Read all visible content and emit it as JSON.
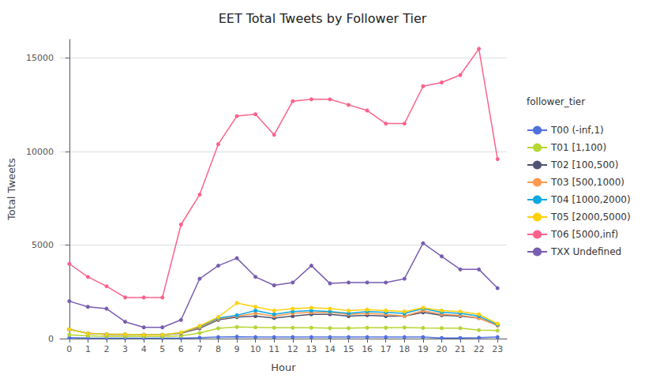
{
  "chart_data": {
    "type": "line",
    "title": "EET Total Tweets by Follower Tier",
    "xlabel": "Hour",
    "ylabel": "Total Tweets",
    "x": [
      0,
      1,
      2,
      3,
      4,
      5,
      6,
      7,
      8,
      9,
      10,
      11,
      12,
      13,
      14,
      15,
      16,
      17,
      18,
      19,
      20,
      21,
      22,
      23
    ],
    "series": [
      {
        "name": "T00 (-inf,1)",
        "values": [
          50,
          30,
          20,
          20,
          20,
          20,
          20,
          50,
          80,
          100,
          80,
          80,
          80,
          80,
          80,
          80,
          80,
          80,
          80,
          80,
          30,
          30,
          50,
          80
        ]
      },
      {
        "name": "T01 [1,100)",
        "values": [
          200,
          150,
          120,
          120,
          120,
          120,
          150,
          300,
          550,
          620,
          600,
          580,
          580,
          580,
          560,
          560,
          580,
          580,
          590,
          570,
          560,
          560,
          450,
          430
        ]
      },
      {
        "name": "T02 [100,500)",
        "values": [
          500,
          280,
          220,
          220,
          200,
          200,
          280,
          550,
          1000,
          1150,
          1200,
          1100,
          1200,
          1300,
          1300,
          1200,
          1250,
          1200,
          1200,
          1400,
          1250,
          1200,
          1100,
          700
        ]
      },
      {
        "name": "T03 [500,1000)",
        "values": [
          500,
          280,
          220,
          220,
          200,
          200,
          300,
          600,
          1050,
          1200,
          1350,
          1200,
          1350,
          1400,
          1400,
          1300,
          1350,
          1300,
          1200,
          1500,
          1300,
          1250,
          1100,
          700
        ]
      },
      {
        "name": "T04 [1000,2000)",
        "values": [
          500,
          270,
          230,
          230,
          200,
          200,
          320,
          650,
          1100,
          1250,
          1500,
          1300,
          1450,
          1500,
          1450,
          1350,
          1450,
          1400,
          1350,
          1600,
          1400,
          1350,
          1200,
          750
        ]
      },
      {
        "name": "T05 [2000,5000)",
        "values": [
          500,
          270,
          230,
          230,
          200,
          200,
          330,
          680,
          1150,
          1900,
          1700,
          1500,
          1600,
          1650,
          1600,
          1500,
          1550,
          1500,
          1450,
          1650,
          1500,
          1450,
          1300,
          800
        ]
      },
      {
        "name": "T06 [5000,inf)",
        "values": [
          4000,
          3300,
          2800,
          2200,
          2200,
          2200,
          6100,
          7700,
          10400,
          11900,
          12000,
          10900,
          12700,
          12800,
          12800,
          12500,
          12200,
          11500,
          11500,
          13500,
          13700,
          14100,
          15500,
          9600
        ]
      },
      {
        "name": "TXX Undefined",
        "values": [
          2000,
          1700,
          1600,
          900,
          600,
          600,
          1000,
          3200,
          3900,
          4300,
          3300,
          2850,
          3000,
          3900,
          2950,
          3000,
          3000,
          3000,
          3200,
          5100,
          4400,
          3700,
          3700,
          2700
        ]
      }
    ],
    "xlim": [
      -0.5,
      23.5
    ],
    "xticks": [
      0,
      1,
      2,
      3,
      4,
      5,
      6,
      7,
      8,
      9,
      10,
      11,
      12,
      13,
      14,
      15,
      16,
      17,
      18,
      19,
      20,
      21,
      22,
      23
    ],
    "ylim": [
      0,
      16000
    ],
    "yticks": [
      0,
      5000,
      10000,
      15000
    ],
    "grid": true,
    "legend": "right",
    "legend_title": "follower_tier",
    "marker": "circle"
  }
}
